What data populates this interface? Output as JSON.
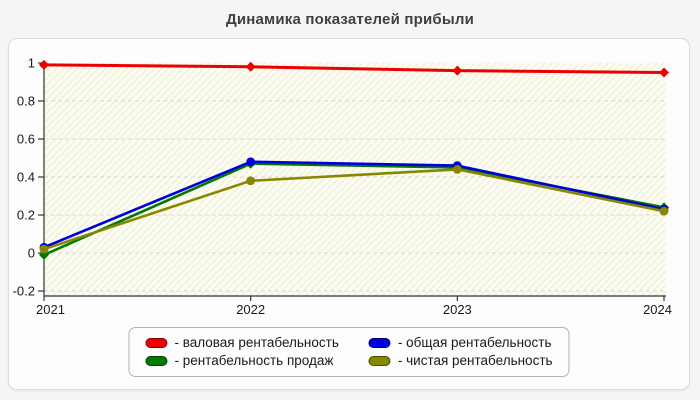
{
  "header": {
    "title": "Динамика показателей прибыли"
  },
  "colors": {
    "page_background": "#f5f5f5",
    "panel_background": "#fdfdfd",
    "plot_background": "#fcfcf0",
    "plot_hatch": "#ebebdb",
    "gridline": "#d9d9d9",
    "axis": "#333333",
    "tick_text": "#1a1a1a",
    "series_red": "#ee0000",
    "series_blue": "#0000dd",
    "series_green": "#007a00",
    "series_olive": "#878700"
  },
  "chart_data": {
    "type": "line",
    "title": "Динамика показателей прибыли",
    "categories": [
      "2021",
      "2022",
      "2023",
      "2024"
    ],
    "x": [
      2021,
      2022,
      2023,
      2024
    ],
    "series": [
      {
        "name": "валовая рентабельность",
        "color": "#ee0000",
        "marker": "diamond",
        "values": [
          0.99,
          0.98,
          0.96,
          0.95
        ]
      },
      {
        "name": "рентабельность продаж",
        "color": "#007a00",
        "marker": "diamond",
        "values": [
          -0.01,
          0.47,
          0.45,
          0.24
        ]
      },
      {
        "name": "общая рентабельность",
        "color": "#0000dd",
        "marker": "circle",
        "values": [
          0.03,
          0.48,
          0.46,
          0.23
        ]
      },
      {
        "name": "чистая рентабельность",
        "color": "#878700",
        "marker": "circle",
        "values": [
          0.02,
          0.38,
          0.44,
          0.22
        ]
      }
    ],
    "ylim": [
      -0.2,
      1.0
    ],
    "yticks": [
      1,
      0.8,
      0.6,
      0.4,
      0.2,
      0,
      -0.2
    ],
    "ytick_labels": [
      "1",
      "0.8",
      "0.6",
      "0.4",
      "0.2",
      "0",
      "-0.2"
    ],
    "xlabel": "",
    "ylabel": "",
    "grid": "horizontal-dashed",
    "legend_position": "bottom-box",
    "legend": [
      {
        "label": "- валовая рентабельность",
        "color": "#ee0000"
      },
      {
        "label": "- общая рентабельность",
        "color": "#0000dd"
      },
      {
        "label": "- рентабельность продаж",
        "color": "#007a00"
      },
      {
        "label": "- чистая рентабельность",
        "color": "#878700"
      }
    ]
  }
}
